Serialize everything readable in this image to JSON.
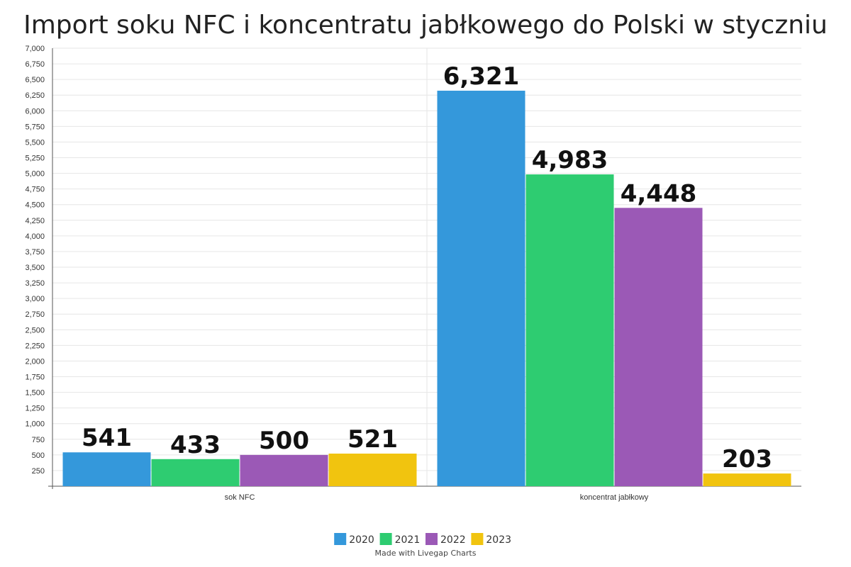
{
  "chart_data": {
    "type": "bar",
    "title": "Import soku NFC i koncentratu jabłkowego do Polski w styczniu",
    "categories": [
      "sok NFC",
      "koncentrat jabłkowy"
    ],
    "series": [
      {
        "name": "2020",
        "color": "#3498db",
        "values": [
          541,
          6321
        ],
        "labels": [
          "541",
          "6,321"
        ]
      },
      {
        "name": "2021",
        "color": "#2ecc71",
        "values": [
          433,
          4983
        ],
        "labels": [
          "433",
          "4,983"
        ]
      },
      {
        "name": "2022",
        "color": "#9b59b6",
        "values": [
          500,
          4448
        ],
        "labels": [
          "500",
          "4,448"
        ]
      },
      {
        "name": "2023",
        "color": "#f1c40f",
        "values": [
          521,
          203
        ],
        "labels": [
          "521",
          "203"
        ]
      }
    ],
    "yticks": [
      "250",
      "500",
      "750",
      "1,000",
      "1,250",
      "1,500",
      "1,750",
      "2,000",
      "2,250",
      "2,500",
      "2,750",
      "3,000",
      "3,250",
      "3,500",
      "3,750",
      "4,000",
      "4,250",
      "4,500",
      "4,750",
      "5,000",
      "5,250",
      "5,500",
      "5,750",
      "6,000",
      "6,250",
      "6,500",
      "6,750",
      "7,000"
    ],
    "ylim": [
      0,
      7000
    ],
    "grid": true,
    "legend_position": "bottom-center"
  },
  "footer": {
    "credit": "Made with Livegap Charts"
  }
}
